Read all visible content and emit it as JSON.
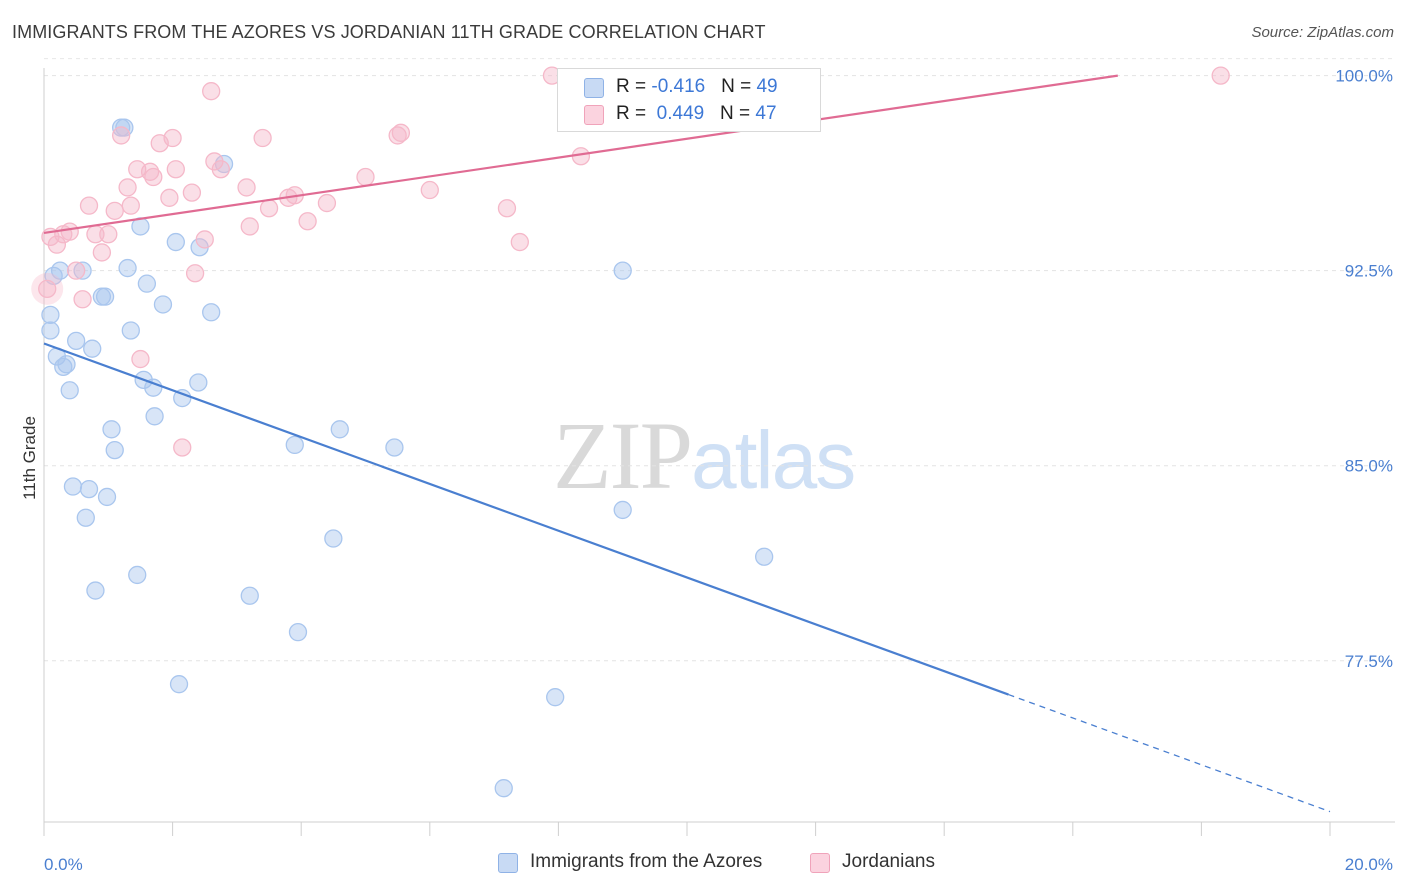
{
  "header": {
    "title": "IMMIGRANTS FROM THE AZORES VS JORDANIAN 11TH GRADE CORRELATION CHART",
    "source": "Source: ZipAtlas.com"
  },
  "watermark": {
    "zip": "ZIP",
    "atlas": "atlas"
  },
  "legend": {
    "rows": [
      {
        "r_label": "R = ",
        "r_value": "-0.416",
        "n_label": "N = ",
        "n_value": "49",
        "color": "#a9c6ee"
      },
      {
        "r_label": "R = ",
        "r_value": " 0.449",
        "n_label": "N = ",
        "n_value": "47",
        "color": "#f5b8c9"
      }
    ]
  },
  "bottom_legend": {
    "items": [
      {
        "label": "Immigrants from the Azores",
        "color": "#a9c6ee"
      },
      {
        "label": "Jordanians",
        "color": "#f5b8c9"
      }
    ]
  },
  "chart_data": {
    "type": "scatter",
    "title": "IMMIGRANTS FROM THE AZORES VS JORDANIAN 11TH GRADE CORRELATION CHART",
    "xlabel": "",
    "ylabel": "11th Grade",
    "xlim": [
      0,
      20
    ],
    "ylim": [
      71.3,
      100.6
    ],
    "x_tick_labels": [
      "0.0%",
      "20.0%"
    ],
    "y_ticks": [
      77.5,
      85.0,
      92.5,
      100.0
    ],
    "y_tick_labels": [
      "77.5%",
      "85.0%",
      "92.5%",
      "100.0%"
    ],
    "grid": true,
    "legend_position": "top-center",
    "series": [
      {
        "name": "Immigrants from the Azores",
        "color": "#4a7fd0",
        "fill": "#a9c6ee",
        "r": -0.416,
        "n": 49,
        "trend": {
          "x0": 0.0,
          "y0": 89.7,
          "x1": 15.0,
          "y1": 76.2,
          "dash_to_x": 20.0,
          "dash_to_y": 71.7
        },
        "points": [
          [
            0.1,
            90.2
          ],
          [
            0.1,
            90.8
          ],
          [
            0.15,
            92.3
          ],
          [
            0.2,
            89.2
          ],
          [
            0.25,
            92.5
          ],
          [
            0.3,
            88.8
          ],
          [
            0.35,
            88.9
          ],
          [
            0.4,
            87.9
          ],
          [
            0.45,
            84.2
          ],
          [
            0.5,
            89.8
          ],
          [
            0.6,
            92.5
          ],
          [
            0.65,
            83.0
          ],
          [
            0.7,
            84.1
          ],
          [
            0.75,
            89.5
          ],
          [
            0.8,
            80.2
          ],
          [
            0.9,
            91.5
          ],
          [
            0.95,
            91.5
          ],
          [
            0.98,
            83.8
          ],
          [
            1.05,
            86.4
          ],
          [
            1.1,
            85.6
          ],
          [
            1.2,
            98.0
          ],
          [
            1.25,
            98.0
          ],
          [
            1.3,
            92.6
          ],
          [
            1.35,
            90.2
          ],
          [
            1.45,
            80.8
          ],
          [
            1.5,
            94.2
          ],
          [
            1.55,
            88.3
          ],
          [
            1.6,
            92.0
          ],
          [
            1.7,
            88.0
          ],
          [
            1.72,
            86.9
          ],
          [
            1.85,
            91.2
          ],
          [
            2.05,
            93.6
          ],
          [
            2.1,
            76.6
          ],
          [
            2.15,
            87.6
          ],
          [
            2.4,
            88.2
          ],
          [
            2.42,
            93.4
          ],
          [
            2.6,
            90.9
          ],
          [
            2.8,
            96.6
          ],
          [
            3.2,
            80.0
          ],
          [
            3.95,
            78.6
          ],
          [
            3.9,
            85.8
          ],
          [
            4.5,
            82.2
          ],
          [
            4.6,
            86.4
          ],
          [
            5.45,
            85.7
          ],
          [
            7.15,
            72.6
          ],
          [
            7.95,
            76.1
          ],
          [
            9.0,
            83.3
          ],
          [
            9.0,
            92.5
          ],
          [
            11.2,
            81.5
          ]
        ]
      },
      {
        "name": "Jordanians",
        "color": "#e06b93",
        "fill": "#f5b8c9",
        "r": 0.449,
        "n": 47,
        "trend": {
          "x0": 0.0,
          "y0": 93.95,
          "x1": 16.7,
          "y1": 100.0
        },
        "points": [
          [
            0.05,
            91.8
          ],
          [
            0.1,
            93.8
          ],
          [
            0.2,
            93.5
          ],
          [
            0.3,
            93.9
          ],
          [
            0.4,
            94.0
          ],
          [
            0.5,
            92.5
          ],
          [
            0.6,
            91.4
          ],
          [
            0.7,
            95.0
          ],
          [
            0.8,
            93.9
          ],
          [
            0.9,
            93.2
          ],
          [
            1.0,
            93.9
          ],
          [
            1.1,
            94.8
          ],
          [
            1.2,
            97.7
          ],
          [
            1.3,
            95.7
          ],
          [
            1.35,
            95.0
          ],
          [
            1.45,
            96.4
          ],
          [
            1.5,
            89.1
          ],
          [
            1.65,
            96.3
          ],
          [
            1.7,
            96.1
          ],
          [
            1.8,
            97.4
          ],
          [
            1.95,
            95.3
          ],
          [
            2.0,
            97.6
          ],
          [
            2.05,
            96.4
          ],
          [
            2.15,
            85.7
          ],
          [
            2.3,
            95.5
          ],
          [
            2.35,
            92.4
          ],
          [
            2.5,
            93.7
          ],
          [
            2.6,
            99.4
          ],
          [
            2.65,
            96.7
          ],
          [
            2.75,
            96.4
          ],
          [
            3.15,
            95.7
          ],
          [
            3.2,
            94.2
          ],
          [
            3.4,
            97.6
          ],
          [
            3.5,
            94.9
          ],
          [
            3.8,
            95.3
          ],
          [
            3.9,
            95.4
          ],
          [
            4.1,
            94.4
          ],
          [
            4.4,
            95.1
          ],
          [
            5.0,
            96.1
          ],
          [
            5.5,
            97.7
          ],
          [
            5.55,
            97.8
          ],
          [
            6.0,
            95.6
          ],
          [
            7.2,
            94.9
          ],
          [
            7.4,
            93.6
          ],
          [
            7.9,
            100.0
          ],
          [
            8.35,
            96.9
          ],
          [
            18.3,
            100.0
          ]
        ]
      }
    ]
  }
}
